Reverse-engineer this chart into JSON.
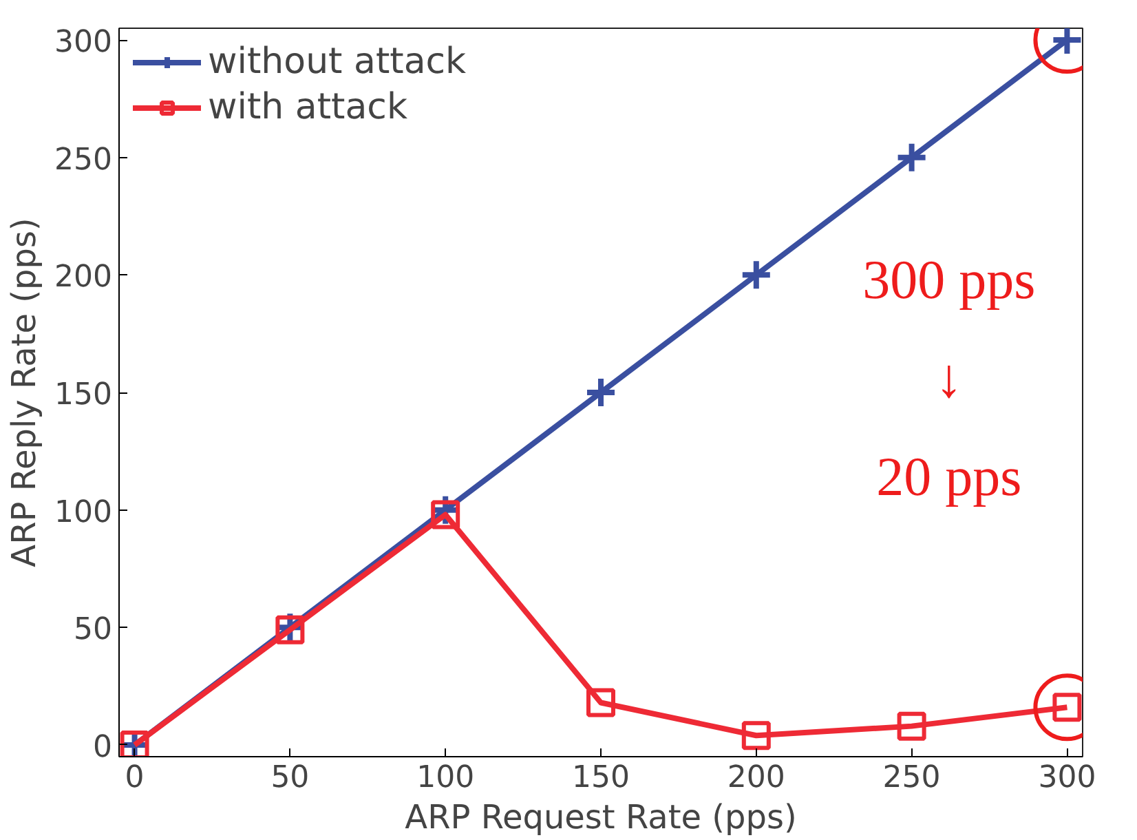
{
  "chart_data": {
    "type": "line",
    "xlabel": "ARP Request Rate (pps)",
    "ylabel": "ARP Reply Rate (pps)",
    "x": [
      0,
      50,
      100,
      150,
      200,
      250,
      300
    ],
    "series": [
      {
        "name": "without attack",
        "color": "#3a4fa0",
        "values": [
          0,
          50,
          100,
          150,
          200,
          250,
          300
        ],
        "marker": "cross"
      },
      {
        "name": "with attack",
        "color": "#ee2a35",
        "values": [
          0,
          49,
          98,
          18,
          4,
          8,
          16
        ],
        "marker": "square"
      }
    ],
    "xlim": [
      -5,
      305
    ],
    "ylim": [
      -5,
      305
    ],
    "xticks": [
      0,
      50,
      100,
      150,
      200,
      250,
      300
    ],
    "yticks": [
      0,
      50,
      100,
      150,
      200,
      250,
      300
    ],
    "grid": false,
    "legend": "top left",
    "line_style": "solid",
    "annotations": [
      "300 pps\n↓\n20 pps"
    ]
  }
}
